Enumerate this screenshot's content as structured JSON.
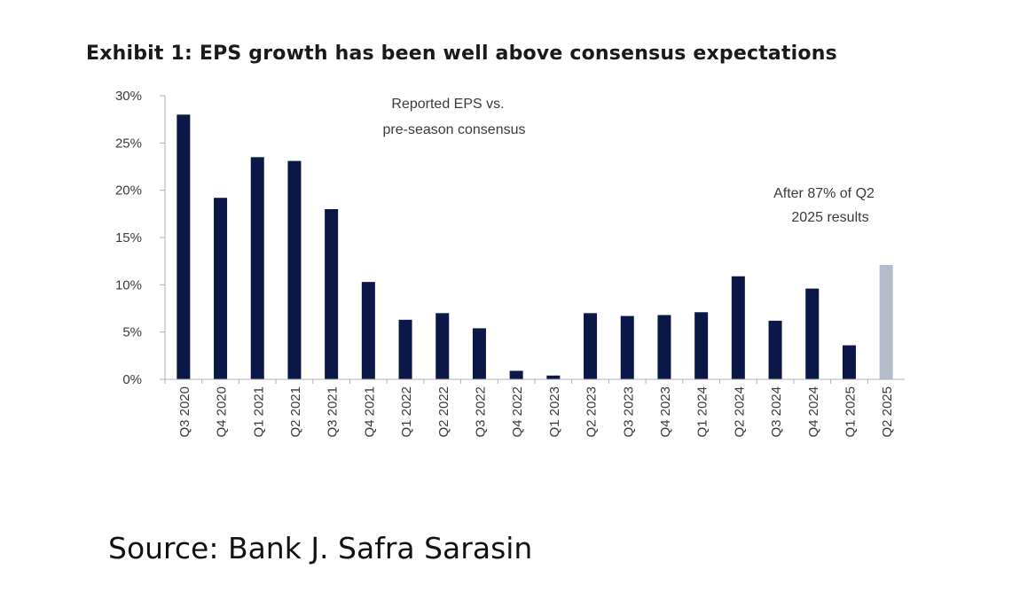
{
  "colors": {
    "bar_primary": "#0b1746",
    "bar_highlight": "#b4bccb",
    "axis": "#b0b0b0"
  },
  "chart_data": {
    "type": "bar",
    "title": "Exhibit 1: EPS growth has been well above consensus expectations",
    "categories": [
      "Q3 2020",
      "Q4 2020",
      "Q1 2021",
      "Q2 2021",
      "Q3 2021",
      "Q4 2021",
      "Q1 2022",
      "Q2 2022",
      "Q3 2022",
      "Q4 2022",
      "Q1 2023",
      "Q2 2023",
      "Q3 2023",
      "Q4 2023",
      "Q1 2024",
      "Q2 2024",
      "Q3 2024",
      "Q4 2024",
      "Q1 2025",
      "Q2 2025"
    ],
    "values": [
      28.0,
      19.2,
      23.5,
      23.1,
      18.0,
      10.3,
      6.3,
      7.0,
      5.4,
      0.9,
      0.4,
      7.0,
      6.7,
      6.8,
      7.1,
      10.9,
      6.2,
      9.6,
      3.6,
      12.1
    ],
    "highlight_index": 19,
    "ylim": [
      0,
      30
    ],
    "yticks": [
      0,
      5,
      10,
      15,
      20,
      25,
      30
    ],
    "ytick_labels": [
      "0%",
      "5%",
      "10%",
      "15%",
      "20%",
      "25%",
      "30%"
    ],
    "xlabel": "",
    "ylabel": "",
    "grid": false,
    "annotations": [
      {
        "lines": [
          "Reported EPS vs.",
          "pre-season consensus"
        ]
      },
      {
        "lines": [
          "After 87% of Q2",
          "2025 results"
        ]
      }
    ]
  },
  "source": "Source: Bank J. Safra Sarasin"
}
